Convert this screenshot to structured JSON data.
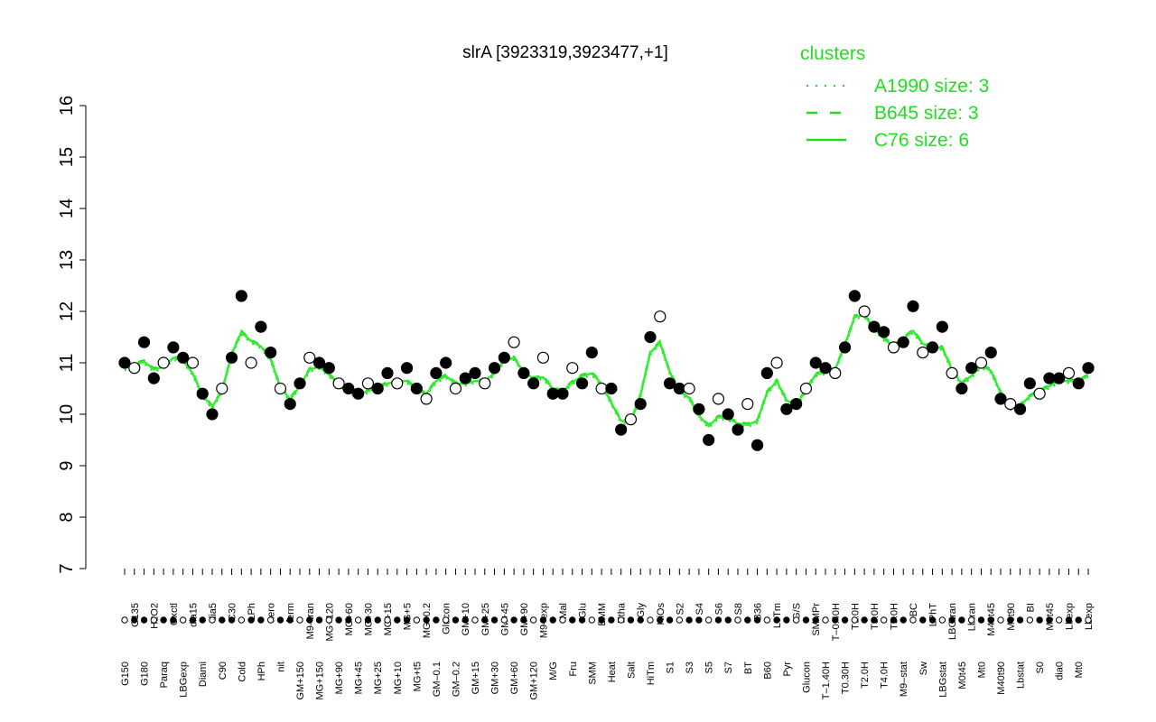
{
  "chart_data": {
    "type": "line",
    "title": "slrA [3923319,3923477,+1]",
    "xlabel": "",
    "ylabel": "",
    "ylim": [
      7,
      16
    ],
    "yticks": [
      7,
      8,
      9,
      10,
      11,
      12,
      13,
      14,
      15,
      16
    ],
    "grid": false,
    "legend": {
      "position": "top-right",
      "title": "clusters",
      "items": [
        {
          "label": "A1990 size: 3",
          "style": "dotted"
        },
        {
          "label": "B645 size: 3",
          "style": "dashed"
        },
        {
          "label": "C76 size: 6",
          "style": "solid"
        }
      ]
    },
    "xtick_labels": [
      "G150",
      "G135",
      "G180",
      "H2O2",
      "Paraq",
      "Oxctl",
      "LBGexp",
      "dia15",
      "Diami",
      "dia5",
      "C90",
      "C30",
      "Cold",
      "LPh",
      "HPh",
      "aero",
      "nit",
      "ferm",
      "GM+150",
      "M9–tran",
      "MG+150",
      "MG+120",
      "MG+90",
      "MG+60",
      "MG+45",
      "MG+30",
      "MG+25",
      "MG+15",
      "MG+10",
      "MG+5",
      "MG+t5",
      "MG–0.2",
      "GM–0.1",
      "Glucon",
      "GM–0.2",
      "GM+10",
      "GM+15",
      "GM+25",
      "GM+30",
      "GM+45",
      "GM+60",
      "GM+90",
      "GM+120",
      "M9–exp",
      "M/G",
      "Mal",
      "Fru",
      "Glu",
      "SMM",
      "BMM",
      "Heat",
      "Etha",
      "Salt",
      "Gly",
      "HiTm",
      "HiOs",
      "S1",
      "S2",
      "S3",
      "S4",
      "S5",
      "S6",
      "S7",
      "S8",
      "BT",
      "B36",
      "B60",
      "LoTm",
      "Pyr",
      "G/S",
      "Glucon",
      "SMMPr",
      "T–1.40H",
      "T–0.40H",
      "T0.30H",
      "T1.0H",
      "T2.0H",
      "T3.0H",
      "T4.0H",
      "T5.0H",
      "M9–stat",
      "BC",
      "Sw",
      "LPhT",
      "LBGstat",
      "LBGtran",
      "M0t45",
      "Lbtran",
      "Mt0",
      "M40t45",
      "M40t90",
      "M0t90",
      "Lbstat",
      "BI",
      "S0",
      "M0t45",
      "dia0",
      "Lbexp",
      "Mt0",
      "Lbexp"
    ],
    "series": [
      {
        "values": [
          11.0,
          10.9,
          11.4,
          10.7,
          11.0,
          11.3,
          11.1,
          11.0,
          10.4,
          10.0,
          10.5,
          11.1,
          12.3,
          11.0,
          11.7,
          11.2,
          10.5,
          10.2,
          10.6,
          11.1,
          11.0,
          10.9,
          10.6,
          10.5,
          10.4,
          10.6,
          10.5,
          10.8,
          10.6,
          10.9,
          10.5,
          10.3,
          10.8,
          11.0,
          10.5,
          10.7,
          10.8,
          10.6,
          10.9,
          11.1,
          11.4,
          10.8,
          10.6,
          11.1,
          10.4,
          10.4,
          10.9,
          10.6,
          11.2,
          10.5,
          10.5,
          9.7,
          9.9,
          10.2,
          11.5,
          11.9,
          10.6,
          10.5,
          10.5,
          10.1,
          9.5,
          10.3,
          10.0,
          9.7,
          10.2,
          9.4,
          10.8,
          11.0,
          10.1,
          10.2,
          10.5,
          11.0,
          10.9,
          10.8,
          11.3,
          12.3,
          12.0,
          11.7,
          11.6,
          11.3,
          11.4,
          12.1,
          11.2,
          11.3,
          11.7,
          10.8,
          10.5,
          10.9,
          11.0,
          11.2,
          10.3,
          10.2,
          10.1,
          10.6,
          10.4,
          10.7,
          10.7,
          10.8,
          10.6,
          10.9
        ]
      }
    ]
  }
}
